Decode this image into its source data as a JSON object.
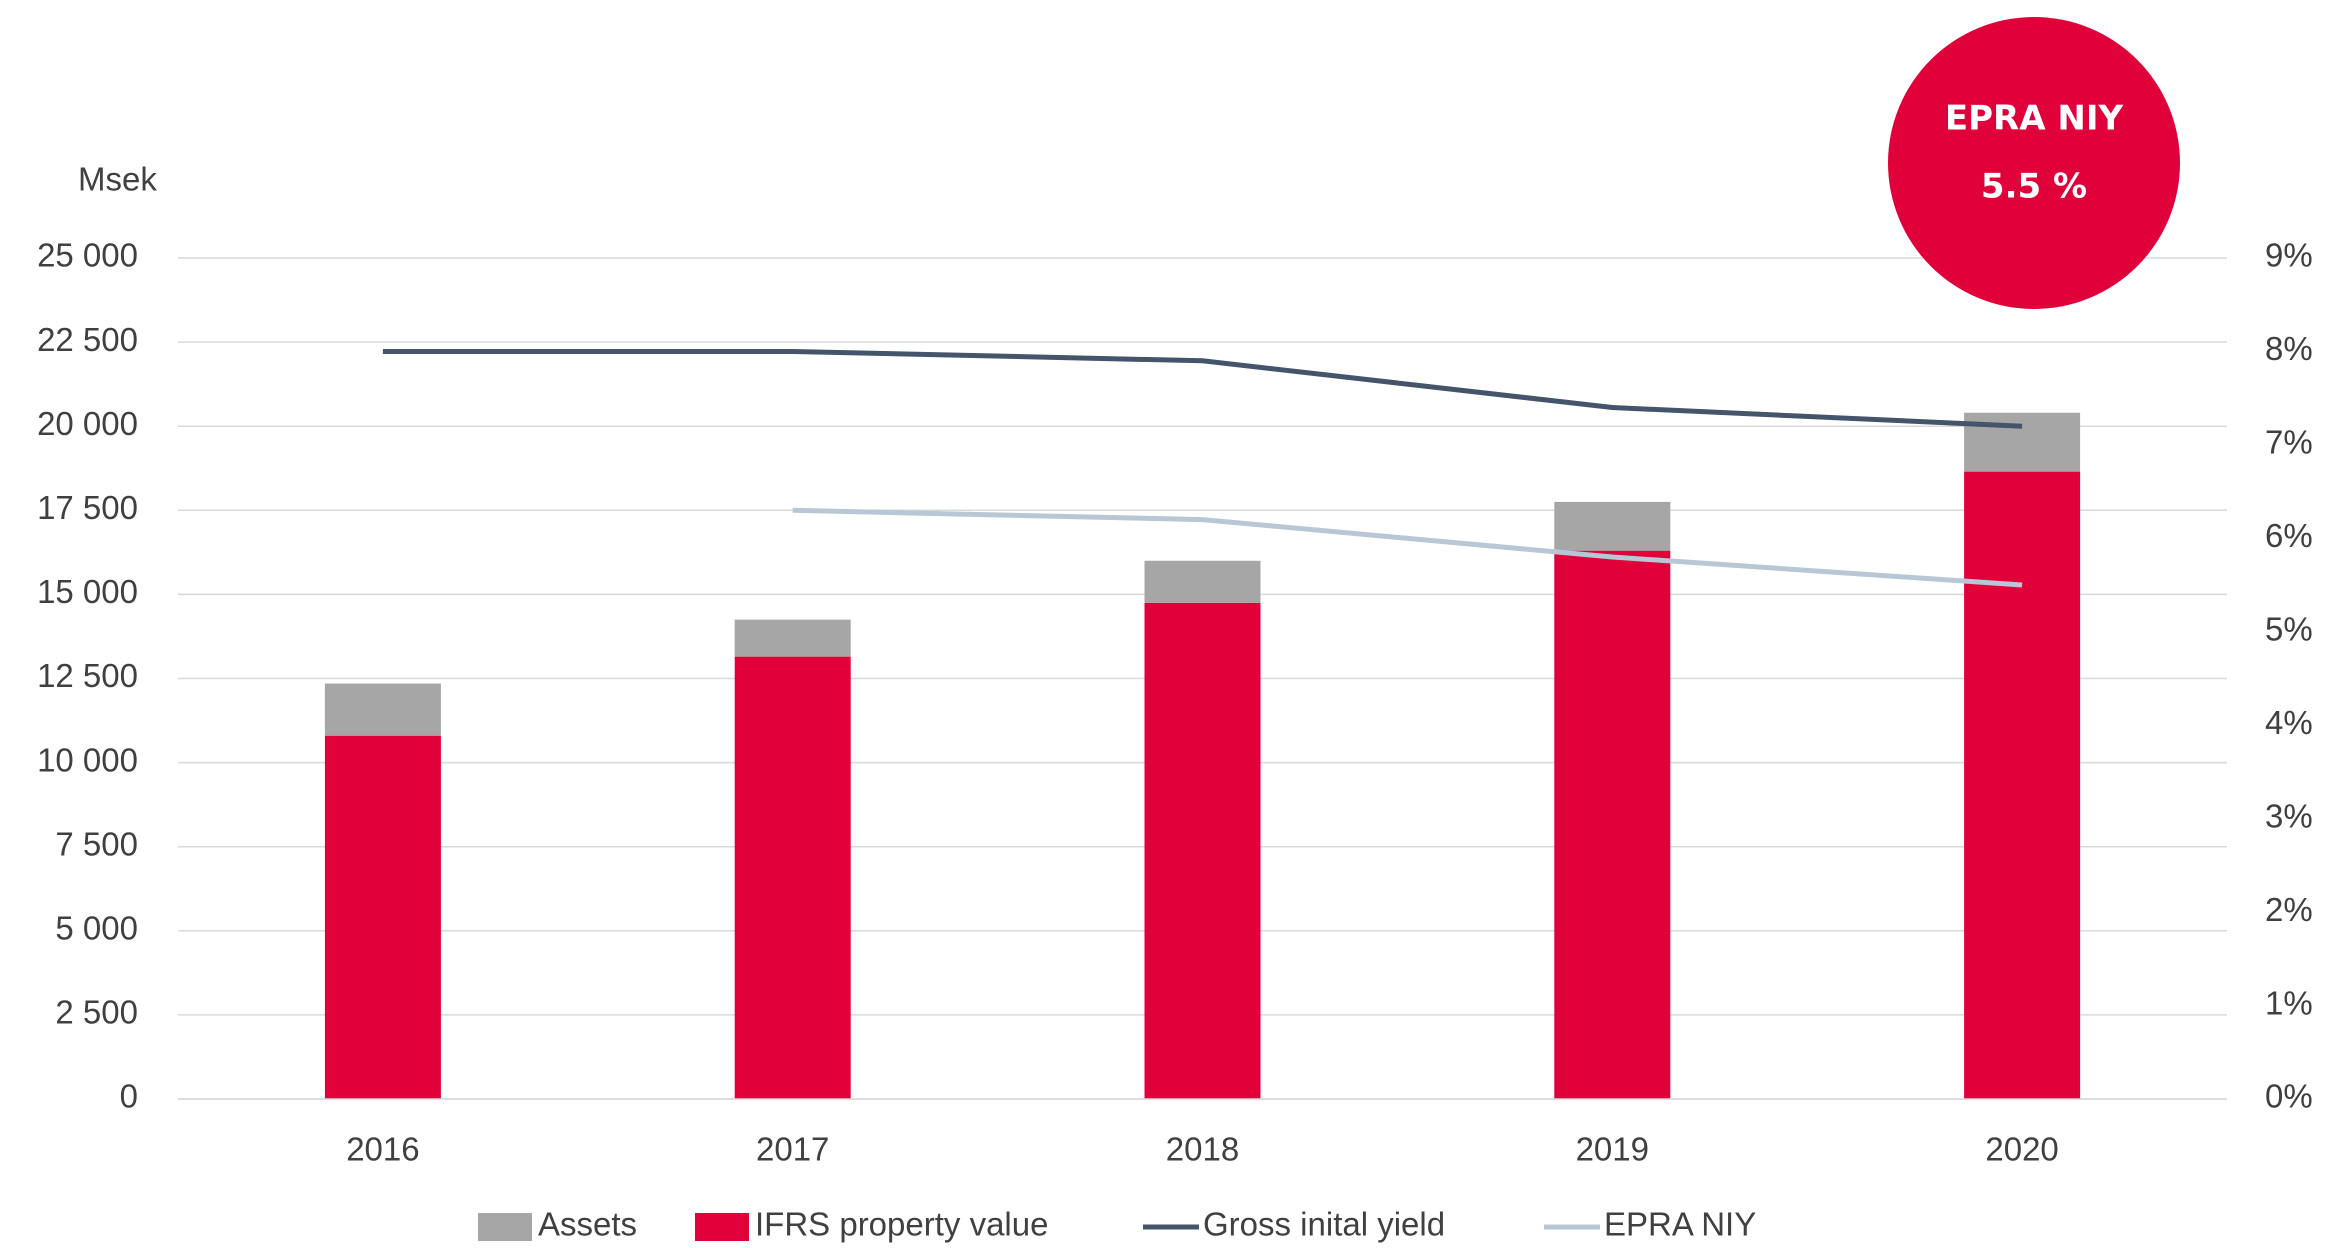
{
  "chart_data": {
    "type": "bar",
    "y_label": "Msek",
    "annotation": {
      "title": "EPRA NIY",
      "text": "5.5 %",
      "color": "#e0003a"
    },
    "categories": [
      "2016",
      "2017",
      "2018",
      "2019",
      "2020"
    ],
    "series": [
      {
        "name": "Assets",
        "type": "bar",
        "color": "#a6a6a6",
        "values": [
          1550,
          1100,
          1250,
          1450,
          1750
        ]
      },
      {
        "name": "IFRS property value",
        "type": "bar",
        "color": "#e0003a",
        "values": [
          10800,
          13150,
          14750,
          16300,
          18650
        ]
      },
      {
        "name": "Gross inital yield",
        "type": "line",
        "axis": "y2",
        "color": "#44546a",
        "values": [
          8.0,
          8.0,
          7.9,
          7.4,
          7.2
        ]
      },
      {
        "name": "EPRA NIY",
        "type": "line",
        "axis": "y2",
        "color": "#b8c7d5",
        "values": [
          null,
          6.3,
          6.2,
          5.8,
          5.5
        ]
      }
    ],
    "stacked": true,
    "ylim": [
      0,
      25000
    ],
    "yticks": [
      0,
      {
        "value": 2500,
        "label": "2 500"
      },
      {
        "value": 5000,
        "label": "5 000"
      },
      {
        "value": 7500,
        "label": "7 500"
      },
      {
        "value": 10000,
        "label": "10 000"
      },
      {
        "value": 12500,
        "label": "12 500"
      },
      {
        "value": 15000,
        "label": "15 000"
      },
      {
        "value": 17500,
        "label": "17 500"
      },
      {
        "value": 20000,
        "label": "20 000"
      },
      {
        "value": 22500,
        "label": "22 500"
      },
      {
        "value": 25000,
        "label": "25 000"
      }
    ],
    "y2lim": [
      0,
      9
    ],
    "y2ticks": [
      {
        "value": 0,
        "label": "0%"
      },
      {
        "value": 1,
        "label": "1%"
      },
      {
        "value": 2,
        "label": "2%"
      },
      {
        "value": 3,
        "label": "3%"
      },
      {
        "value": 4,
        "label": "4%"
      },
      {
        "value": 5,
        "label": "5%"
      },
      {
        "value": 6,
        "label": "6%"
      },
      {
        "value": 7,
        "label": "7%"
      },
      {
        "value": 8,
        "label": "8%"
      },
      {
        "value": 9,
        "label": "9%"
      }
    ],
    "grid": true,
    "legend": "bottom"
  }
}
